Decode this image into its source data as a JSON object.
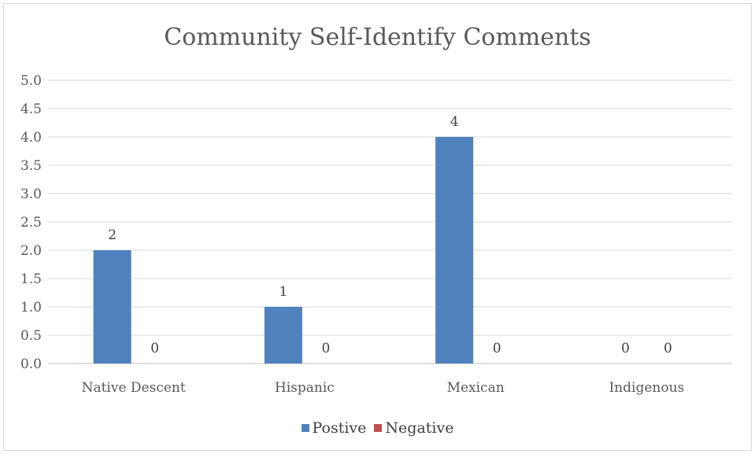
{
  "chart_data": {
    "type": "bar",
    "title": "Community Self-Identify Comments",
    "xlabel": "",
    "ylabel": "",
    "categories": [
      "Native Descent",
      "Hispanic",
      "Mexican",
      "Indigenous"
    ],
    "series": [
      {
        "name": "Postive",
        "values": [
          2,
          1,
          4,
          0
        ],
        "color": "#4f81bd"
      },
      {
        "name": "Negative",
        "values": [
          0,
          0,
          0,
          0
        ],
        "color": "#c0504d"
      }
    ],
    "ylim": [
      0,
      5
    ],
    "yticks": [
      "0.0",
      "0.5",
      "1.0",
      "1.5",
      "2.0",
      "2.5",
      "3.0",
      "3.5",
      "4.0",
      "4.5",
      "5.0"
    ],
    "grid": true,
    "data_labels": true,
    "legend_position": "bottom"
  }
}
